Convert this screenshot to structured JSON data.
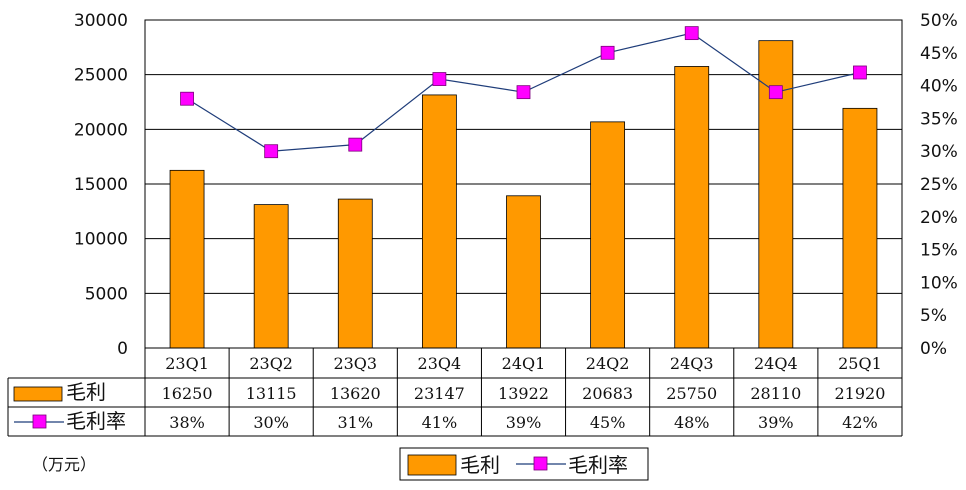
{
  "chart_data": {
    "type": "bar",
    "categories": [
      "23Q1",
      "23Q2",
      "23Q3",
      "23Q4",
      "24Q1",
      "24Q2",
      "24Q3",
      "24Q4",
      "25Q1"
    ],
    "series": [
      {
        "name": "毛利",
        "type": "bar",
        "axis": "left",
        "values": [
          16250,
          13115,
          13620,
          23147,
          13922,
          20683,
          25750,
          28110,
          21920
        ],
        "color": "#ff9900"
      },
      {
        "name": "毛利率",
        "type": "line",
        "axis": "right",
        "values": [
          38,
          30,
          31,
          41,
          39,
          45,
          48,
          39,
          42
        ],
        "color": "#ff00ff",
        "line_color": "#1f3d7a"
      }
    ],
    "table_rows": [
      {
        "label": "毛利",
        "cells": [
          "16250",
          "13115",
          "13620",
          "23147",
          "13922",
          "20683",
          "25750",
          "28110",
          "21920"
        ]
      },
      {
        "label": "毛利率",
        "cells": [
          "38%",
          "30%",
          "31%",
          "41%",
          "39%",
          "45%",
          "48%",
          "39%",
          "42%"
        ]
      }
    ],
    "y_left": {
      "min": 0,
      "max": 30000,
      "step": 5000,
      "ticks": [
        "0",
        "5000",
        "10000",
        "15000",
        "20000",
        "25000",
        "30000"
      ]
    },
    "y_right": {
      "min": 0,
      "max": 50,
      "step": 5,
      "ticks": [
        "0%",
        "5%",
        "10%",
        "15%",
        "20%",
        "25%",
        "30%",
        "35%",
        "40%",
        "45%",
        "50%"
      ]
    },
    "unit": "（万元）",
    "grid": true,
    "legend_position": "bottom"
  }
}
